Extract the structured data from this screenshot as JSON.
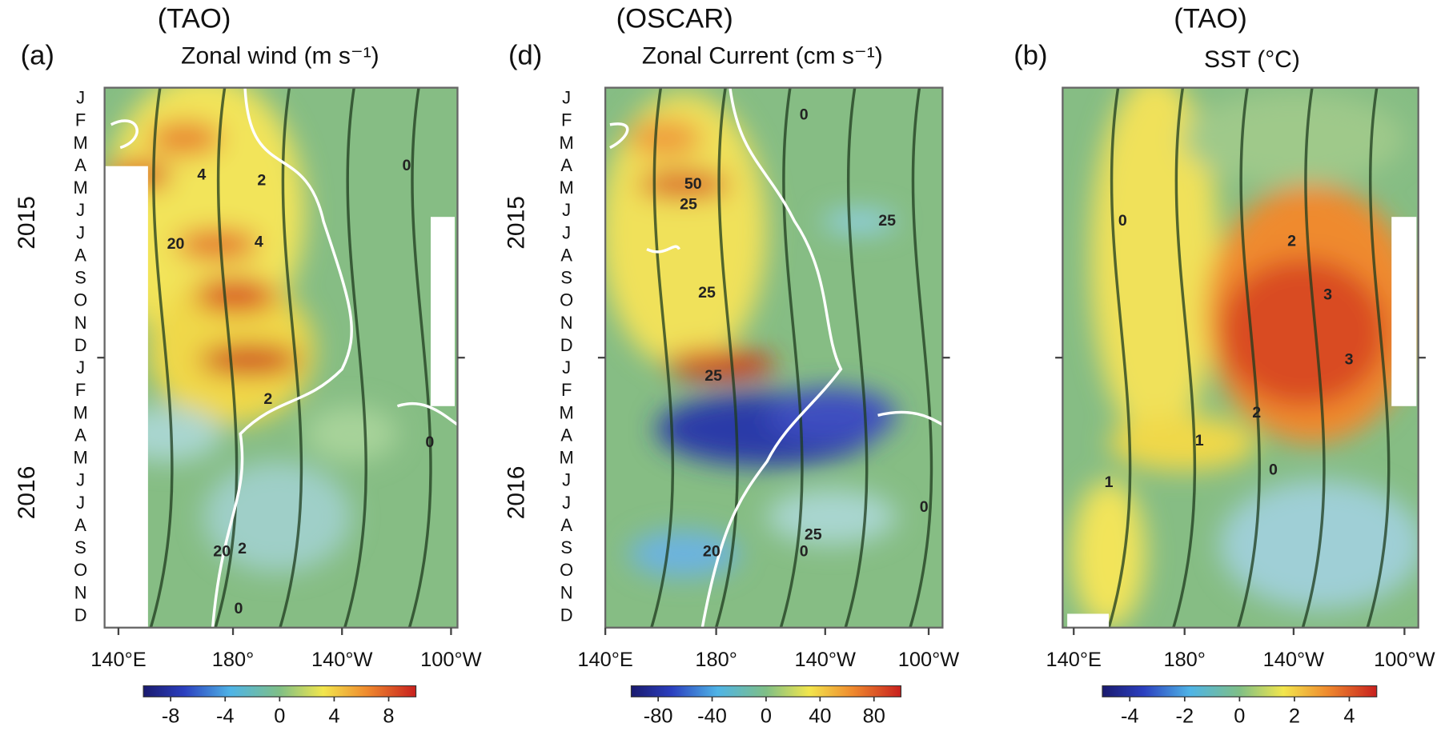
{
  "panels": [
    {
      "label": "(a)",
      "source": "(TAO)",
      "title": "Zonal wind (m s⁻¹)",
      "months": [
        "J",
        "F",
        "M",
        "A",
        "M",
        "J",
        "J",
        "A",
        "S",
        "O",
        "N",
        "D",
        "J",
        "F",
        "M",
        "A",
        "M",
        "J",
        "J",
        "A",
        "S",
        "O",
        "N",
        "D"
      ],
      "years": [
        "2015",
        "2016"
      ],
      "xticks": [
        "140°E",
        "180°",
        "140°W",
        "100°W"
      ],
      "colorbar": {
        "lim": [
          -10,
          10
        ],
        "ticks": [
          -8,
          -4,
          0,
          4,
          8
        ]
      },
      "contour_labels": [
        "4",
        "2",
        "4",
        "2",
        "0",
        "0",
        "20",
        "20",
        "2",
        "0"
      ]
    },
    {
      "label": "(d)",
      "source": "(OSCAR)",
      "title": "Zonal Current (cm s⁻¹)",
      "months": [
        "J",
        "F",
        "M",
        "A",
        "M",
        "J",
        "J",
        "A",
        "S",
        "O",
        "N",
        "D",
        "J",
        "F",
        "M",
        "A",
        "M",
        "J",
        "J",
        "A",
        "S",
        "O",
        "N",
        "D"
      ],
      "years": [
        "2015",
        "2016"
      ],
      "xticks": [
        "140°E",
        "180°",
        "140°W",
        "100°W"
      ],
      "colorbar": {
        "lim": [
          -100,
          100
        ],
        "ticks": [
          -80,
          -40,
          0,
          40,
          80
        ]
      },
      "contour_labels": [
        "50",
        "25",
        "25",
        "25",
        "0",
        "25",
        "25",
        "0",
        "20",
        "0"
      ]
    },
    {
      "label": "(b)",
      "source": "(TAO)",
      "title": "SST (°C)",
      "xticks": [
        "140°E",
        "180°",
        "140°W",
        "100°W"
      ],
      "colorbar": {
        "lim": [
          -5,
          5
        ],
        "ticks": [
          -4,
          -2,
          0,
          2,
          4
        ]
      },
      "contour_labels": [
        "2",
        "3",
        "3",
        "2",
        "1",
        "0",
        "1",
        "0"
      ]
    }
  ]
}
